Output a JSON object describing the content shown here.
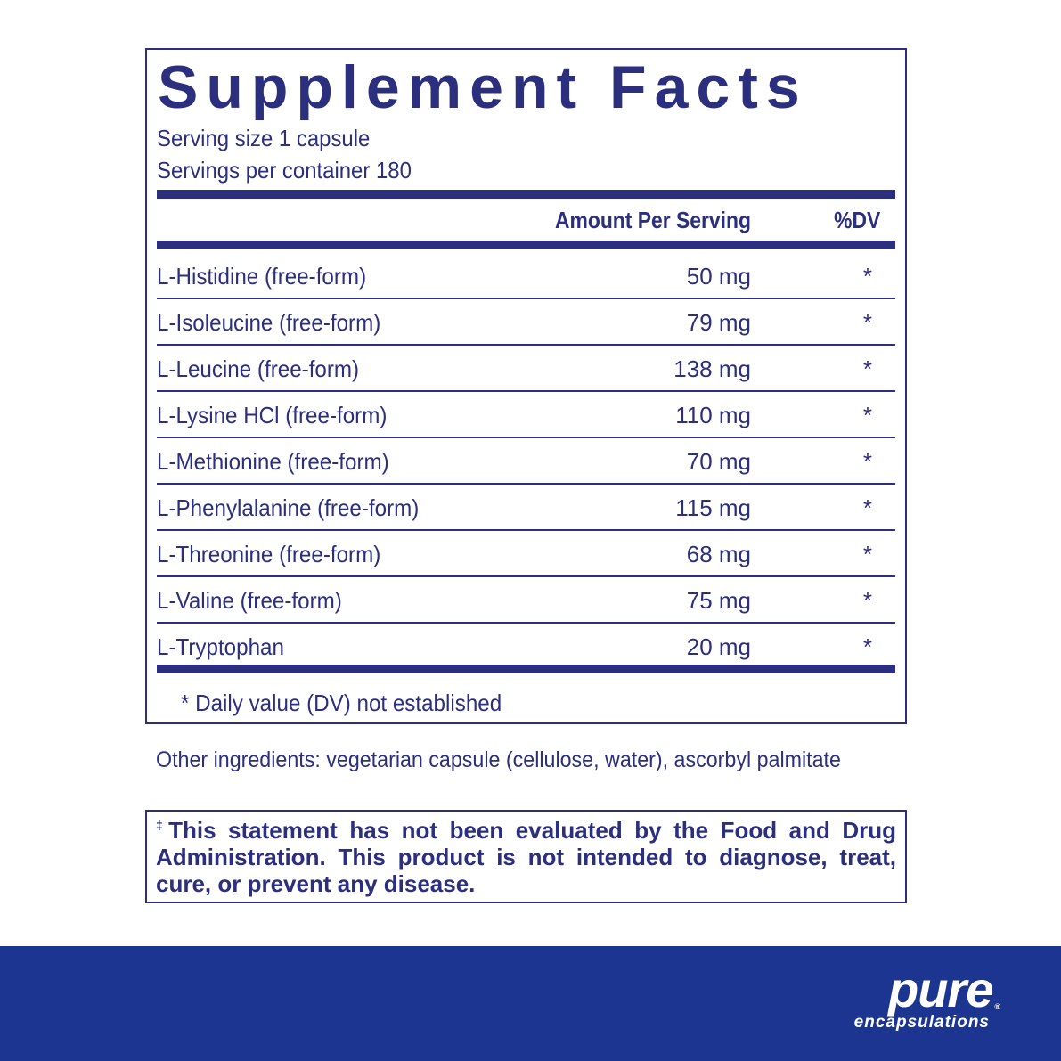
{
  "title": "Supplement Facts",
  "serving_size": "Serving size  1 capsule",
  "servings_per_container": "Servings per container  180",
  "header": {
    "amount": "Amount Per Serving",
    "dv": "%DV"
  },
  "rows": [
    {
      "name": "L-Histidine (free-form)",
      "amount": "50 mg",
      "dv": "*"
    },
    {
      "name": "L-Isoleucine  (free-form)",
      "amount": "79 mg",
      "dv": "*"
    },
    {
      "name": "L-Leucine (free-form)",
      "amount": "138 mg",
      "dv": "*"
    },
    {
      "name": "L-Lysine HCl (free-form)",
      "amount": "110 mg",
      "dv": "*"
    },
    {
      "name": "L-Methionine (free-form)",
      "amount": "70 mg",
      "dv": "*"
    },
    {
      "name": "L-Phenylalanine (free-form)",
      "amount": "115 mg",
      "dv": "*"
    },
    {
      "name": "L-Threonine (free-form)",
      "amount": "68 mg",
      "dv": "*"
    },
    {
      "name": "L-Valine (free-form)",
      "amount": "75 mg",
      "dv": "*"
    },
    {
      "name": "L-Tryptophan",
      "amount": "20 mg",
      "dv": "*"
    }
  ],
  "footnote": "* Daily value (DV) not established",
  "other_ingredients": "Other ingredients: vegetarian capsule (cellulose, water), ascorbyl palmitate",
  "disclaimer_mark": "‡",
  "disclaimer": "This statement has not been evaluated by the Food and Drug Administration. This product is not intended to diagnose, treat, cure, or prevent any disease.",
  "logo": {
    "line1": "pure",
    "line2": "encapsulations",
    "reg": "®"
  },
  "colors": {
    "text": "#2b2f7d",
    "banner": "#1b3590"
  }
}
